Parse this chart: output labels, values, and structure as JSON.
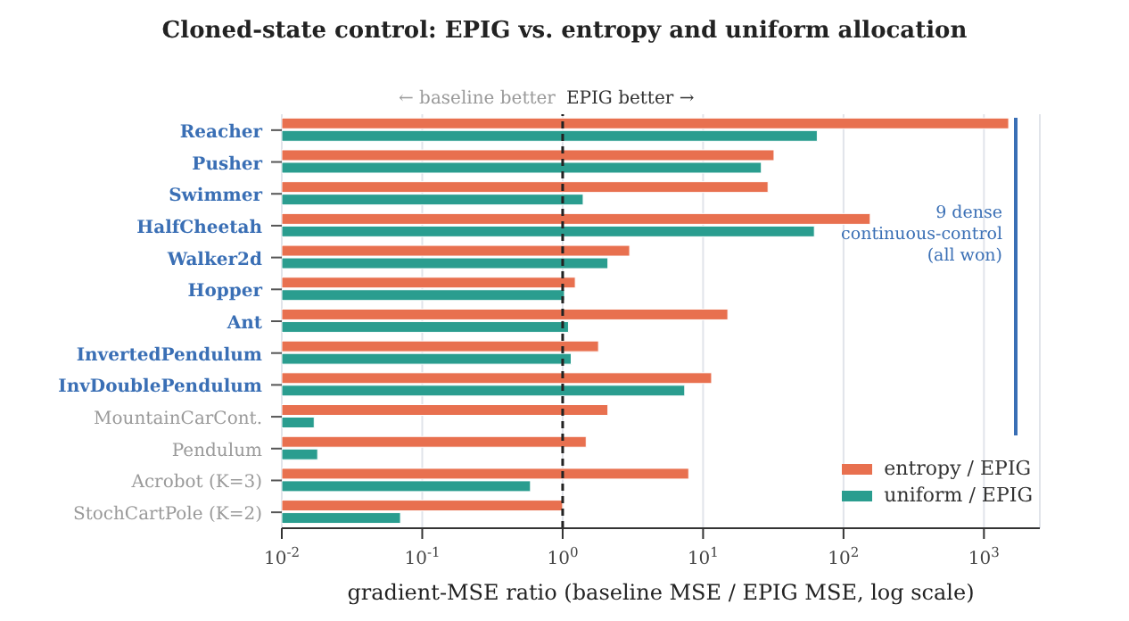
{
  "chart_data": {
    "type": "bar",
    "orientation": "horizontal",
    "title": "Cloned-state control: EPIG vs. entropy and uniform allocation",
    "xlabel": "gradient-MSE ratio  (baseline MSE / EPIG MSE,  log scale)",
    "categories": [
      "Reacher",
      "Pusher",
      "Swimmer",
      "HalfCheetah",
      "Walker2d",
      "Hopper",
      "Ant",
      "InvertedPendulum",
      "InvDoublePendulum",
      "MountainCarCont.",
      "Pendulum",
      "Acrobot (K=3)",
      "StochCartPole (K=2)"
    ],
    "series": [
      {
        "name": "entropy / EPIG",
        "color": "#e8704f",
        "values": [
          1500,
          32,
          29,
          155,
          3.0,
          1.23,
          15,
          1.8,
          11.5,
          2.1,
          1.47,
          7.9,
          1.0
        ]
      },
      {
        "name": "uniform / EPIG",
        "color": "#2a9d8f",
        "values": [
          65,
          26,
          1.4,
          62,
          2.1,
          1.03,
          1.1,
          1.15,
          7.4,
          0.017,
          0.018,
          0.59,
          0.07
        ]
      }
    ],
    "log": "x",
    "xlim": [
      0.01,
      2500
    ],
    "xticks": [
      {
        "value": 0.01,
        "label": "10$^{-2}$"
      },
      {
        "value": 0.1,
        "label": "10$^{-1}$"
      },
      {
        "value": 1,
        "label": "10$^{0}$"
      },
      {
        "value": 10,
        "label": "10$^{1}$"
      },
      {
        "value": 100,
        "label": "10$^{2}$"
      },
      {
        "value": 1000,
        "label": "10$^{3}$"
      }
    ],
    "grid": "x",
    "legend": "bottom right",
    "ref_lines": [
      {
        "axis": "x",
        "value": 1,
        "color": "#222222",
        "line_style": "dashed"
      }
    ],
    "annotations": [
      "← baseline better",
      "EPIG better →",
      "9 dense continuous-control (all won)"
    ]
  }
}
